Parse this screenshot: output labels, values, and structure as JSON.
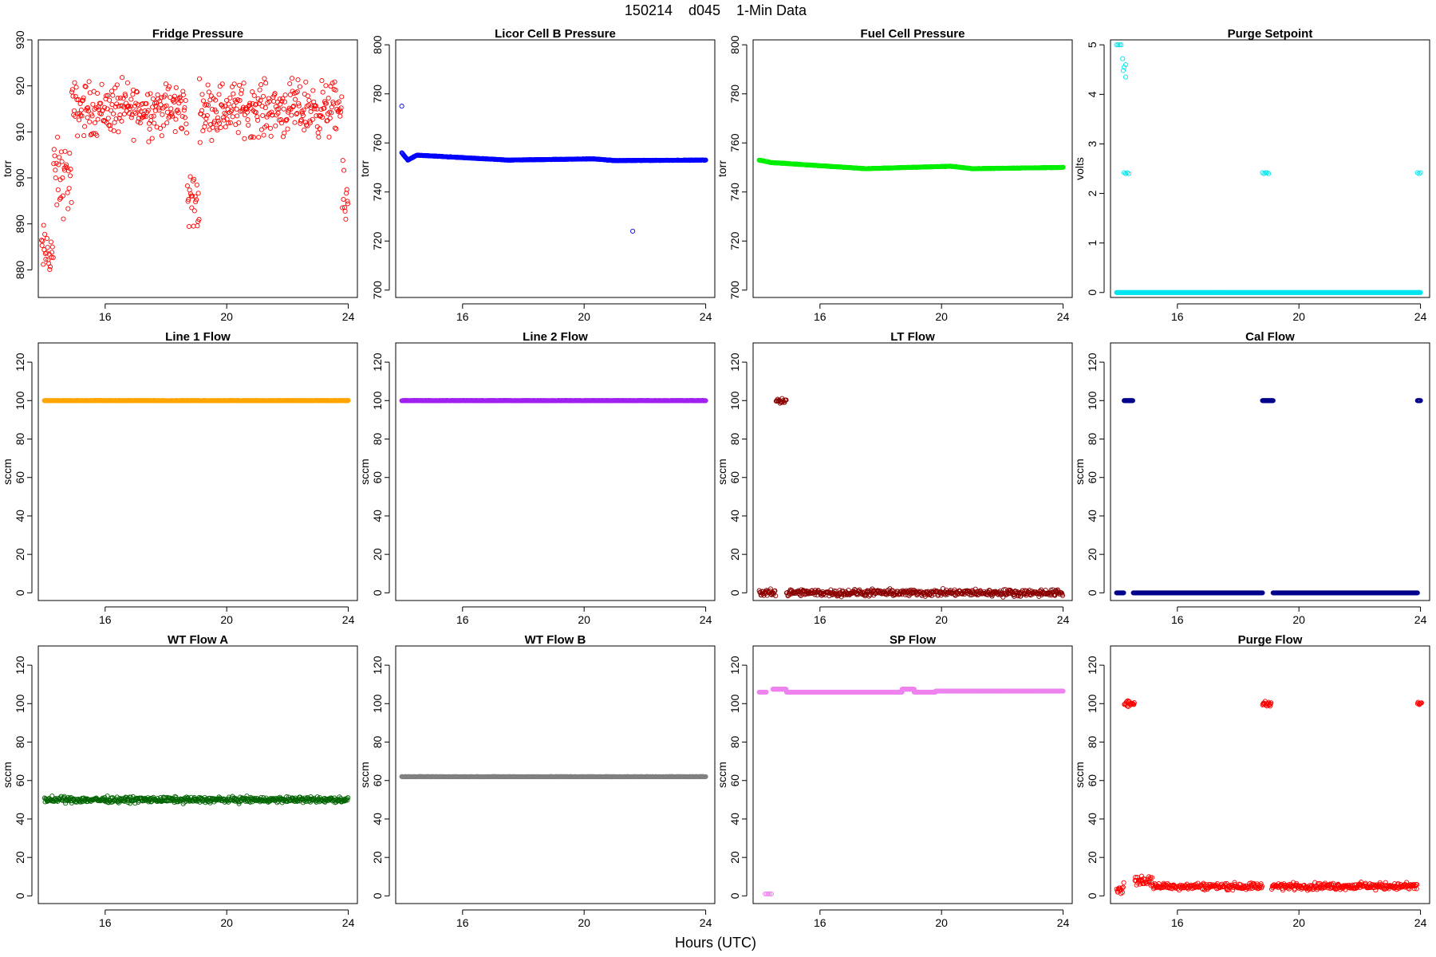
{
  "header": {
    "title": "150214    d045    1-Min Data"
  },
  "footer": {
    "xlabel": "Hours (UTC)"
  },
  "x_ticks": [
    16,
    20,
    24
  ],
  "chart_data": [
    {
      "type": "scatter",
      "title": "Fridge Pressure",
      "ylabel": "torr",
      "color": "#ff0000",
      "xlim": [
        13.8,
        24.3
      ],
      "ylim": [
        874,
        930
      ],
      "yticks": [
        880,
        890,
        900,
        910,
        920,
        930
      ],
      "pattern": {
        "kind": "noisy",
        "segments": [
          [
            13.9,
            14.3,
            884,
            5
          ],
          [
            14.3,
            14.9,
            900,
            7
          ],
          [
            14.9,
            18.7,
            915,
            5
          ],
          [
            18.7,
            19.1,
            895,
            6
          ],
          [
            19.1,
            23.8,
            915,
            5
          ],
          [
            23.8,
            24.0,
            895,
            6
          ]
        ]
      }
    },
    {
      "type": "scatter",
      "title": "Licor Cell B Pressure",
      "ylabel": "torr",
      "color": "#0000ff",
      "xlim": [
        13.8,
        24.3
      ],
      "ylim": [
        697,
        802
      ],
      "yticks": [
        700,
        720,
        740,
        760,
        780,
        800
      ],
      "pattern": {
        "kind": "line",
        "points": [
          [
            14.0,
            756
          ],
          [
            14.2,
            753
          ],
          [
            14.5,
            755
          ],
          [
            17.5,
            753
          ],
          [
            20.3,
            753.5
          ],
          [
            21.0,
            752.8
          ],
          [
            24.0,
            753
          ]
        ],
        "outliers": [
          [
            14.0,
            775
          ],
          [
            21.6,
            724
          ]
        ]
      }
    },
    {
      "type": "scatter",
      "title": "Fuel Cell Pressure",
      "ylabel": "torr",
      "color": "#00ee00",
      "xlim": [
        13.8,
        24.3
      ],
      "ylim": [
        697,
        802
      ],
      "yticks": [
        700,
        720,
        740,
        760,
        780,
        800
      ],
      "pattern": {
        "kind": "line",
        "points": [
          [
            14.0,
            753
          ],
          [
            14.4,
            752
          ],
          [
            17.5,
            749.5
          ],
          [
            20.3,
            750.5
          ],
          [
            21.0,
            749.5
          ],
          [
            24.0,
            750
          ]
        ],
        "outliers": []
      }
    },
    {
      "type": "scatter",
      "title": "Purge Setpoint",
      "ylabel": "volts",
      "color": "#00e5ee",
      "xlim": [
        13.8,
        24.3
      ],
      "ylim": [
        -0.1,
        5.1
      ],
      "yticks": [
        0,
        1,
        2,
        3,
        4,
        5
      ],
      "pattern": {
        "kind": "levels",
        "segments": [
          [
            14.0,
            24.0,
            0
          ]
        ],
        "extras": [
          [
            14.0,
            5.0
          ],
          [
            14.05,
            5.0
          ],
          [
            14.1,
            5.0
          ],
          [
            14.15,
            5.0
          ],
          [
            14.2,
            4.72
          ],
          [
            14.25,
            4.55
          ],
          [
            14.3,
            4.6
          ],
          [
            14.3,
            4.35
          ],
          [
            14.22,
            4.48
          ],
          [
            14.25,
            2.42
          ],
          [
            14.3,
            2.4
          ],
          [
            14.35,
            2.42
          ],
          [
            14.4,
            2.4
          ],
          [
            18.8,
            2.42
          ],
          [
            18.85,
            2.4
          ],
          [
            18.9,
            2.42
          ],
          [
            18.95,
            2.42
          ],
          [
            19.0,
            2.4
          ],
          [
            23.9,
            2.42
          ],
          [
            23.95,
            2.4
          ],
          [
            24.0,
            2.42
          ]
        ]
      }
    },
    {
      "type": "scatter",
      "title": "Line 1 Flow",
      "ylabel": "sccm",
      "color": "#ffa500",
      "xlim": [
        13.8,
        24.3
      ],
      "ylim": [
        -4,
        130
      ],
      "yticks": [
        0,
        20,
        40,
        60,
        80,
        100,
        120
      ],
      "pattern": {
        "kind": "line",
        "points": [
          [
            14.0,
            100
          ],
          [
            24.0,
            100
          ]
        ],
        "outliers": []
      }
    },
    {
      "type": "scatter",
      "title": "Line 2 Flow",
      "ylabel": "sccm",
      "color": "#a020f0",
      "xlim": [
        13.8,
        24.3
      ],
      "ylim": [
        -4,
        130
      ],
      "yticks": [
        0,
        20,
        40,
        60,
        80,
        100,
        120
      ],
      "pattern": {
        "kind": "line",
        "points": [
          [
            14.0,
            100
          ],
          [
            24.0,
            100
          ]
        ],
        "outliers": []
      }
    },
    {
      "type": "scatter",
      "title": "LT Flow",
      "ylabel": "sccm",
      "color": "#8b0000",
      "xlim": [
        13.8,
        24.3
      ],
      "ylim": [
        -4,
        130
      ],
      "yticks": [
        0,
        20,
        40,
        60,
        80,
        100,
        120
      ],
      "pattern": {
        "kind": "noisy",
        "segments": [
          [
            14.0,
            14.55,
            0,
            1.5
          ],
          [
            14.55,
            14.9,
            100,
            1.5
          ],
          [
            14.9,
            24.0,
            0,
            1.5
          ]
        ]
      }
    },
    {
      "type": "scatter",
      "title": "Cal Flow",
      "ylabel": "sccm",
      "color": "#00008b",
      "xlim": [
        13.8,
        24.3
      ],
      "ylim": [
        -4,
        130
      ],
      "yticks": [
        0,
        20,
        40,
        60,
        80,
        100,
        120
      ],
      "pattern": {
        "kind": "levels",
        "segments": [
          [
            14.0,
            14.25,
            0
          ],
          [
            14.25,
            14.55,
            100
          ],
          [
            14.55,
            18.8,
            0
          ],
          [
            18.8,
            19.15,
            100
          ],
          [
            19.15,
            23.9,
            0
          ],
          [
            23.9,
            24.0,
            100
          ]
        ],
        "extras": []
      }
    },
    {
      "type": "scatter",
      "title": "WT Flow A",
      "ylabel": "sccm",
      "color": "#006400",
      "xlim": [
        13.8,
        24.3
      ],
      "ylim": [
        -4,
        130
      ],
      "yticks": [
        0,
        20,
        40,
        60,
        80,
        100,
        120
      ],
      "pattern": {
        "kind": "noisy",
        "segments": [
          [
            14.0,
            24.0,
            50,
            1.3
          ]
        ]
      }
    },
    {
      "type": "scatter",
      "title": "WT Flow B",
      "ylabel": "sccm",
      "color": "#808080",
      "xlim": [
        13.8,
        24.3
      ],
      "ylim": [
        -4,
        130
      ],
      "yticks": [
        0,
        20,
        40,
        60,
        80,
        100,
        120
      ],
      "pattern": {
        "kind": "line",
        "points": [
          [
            14.0,
            62
          ],
          [
            24.0,
            62
          ]
        ],
        "outliers": []
      }
    },
    {
      "type": "scatter",
      "title": "SP Flow",
      "ylabel": "sccm",
      "color": "#ee82ee",
      "xlim": [
        13.8,
        24.3
      ],
      "ylim": [
        -4,
        130
      ],
      "yticks": [
        0,
        20,
        40,
        60,
        80,
        100,
        120
      ],
      "pattern": {
        "kind": "levels",
        "segments": [
          [
            14.0,
            14.25,
            106
          ],
          [
            14.45,
            14.9,
            107.5
          ],
          [
            14.9,
            18.7,
            106
          ],
          [
            18.7,
            19.1,
            107.5
          ],
          [
            19.1,
            19.8,
            106
          ],
          [
            19.8,
            24.0,
            106.5
          ]
        ],
        "extras": [
          [
            14.2,
            1
          ],
          [
            14.25,
            1
          ],
          [
            14.3,
            1
          ],
          [
            14.35,
            1
          ],
          [
            14.4,
            1
          ]
        ]
      }
    },
    {
      "type": "scatter",
      "title": "Purge Flow",
      "ylabel": "sccm",
      "color": "#ff0000",
      "xlim": [
        13.8,
        24.3
      ],
      "ylim": [
        -4,
        130
      ],
      "yticks": [
        0,
        20,
        40,
        60,
        80,
        100,
        120
      ],
      "pattern": {
        "kind": "noisy",
        "segments": [
          [
            14.0,
            14.25,
            4,
            2.5
          ],
          [
            14.25,
            14.6,
            100,
            1.2
          ],
          [
            14.6,
            15.2,
            8,
            2.5
          ],
          [
            15.2,
            18.8,
            5,
            1.5
          ],
          [
            18.8,
            19.1,
            100,
            1
          ],
          [
            19.1,
            23.9,
            5,
            1.5
          ],
          [
            23.9,
            24.05,
            100,
            1
          ]
        ]
      }
    }
  ]
}
